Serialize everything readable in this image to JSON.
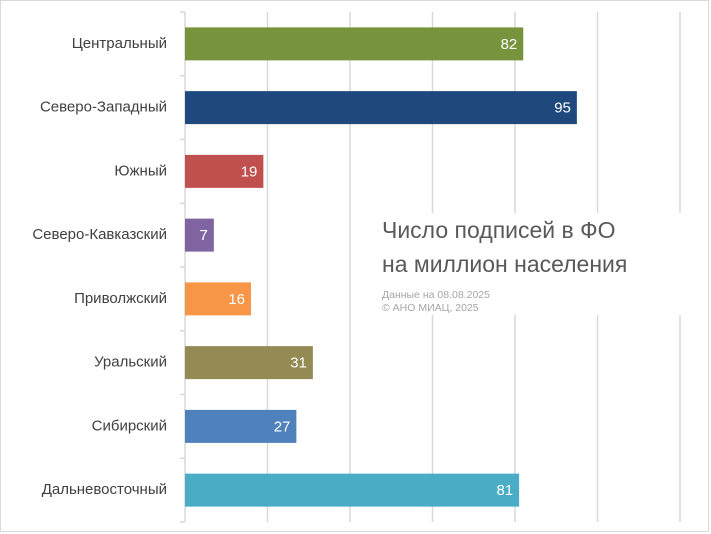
{
  "chart_data": {
    "type": "bar",
    "orientation": "horizontal",
    "title": "Число подписей в ФО\nна миллион населения",
    "notes": [
      "Данные на 08.08.2025",
      "© АНО МИАЦ, 2025"
    ],
    "categories": [
      "Центральный",
      "Северо-Западный",
      "Южный",
      "Северо-Кавказский",
      "Приволжский",
      "Уральский",
      "Сибирский",
      "Дальневосточный"
    ],
    "values": [
      82,
      95,
      19,
      7,
      16,
      31,
      27,
      81
    ],
    "colors": [
      "#77933c",
      "#1f497d",
      "#c0504d",
      "#8064a2",
      "#f79646",
      "#948a54",
      "#4f81bd",
      "#4bacc6"
    ],
    "xlim": [
      0,
      120
    ],
    "grid": true,
    "data_labels": true
  }
}
